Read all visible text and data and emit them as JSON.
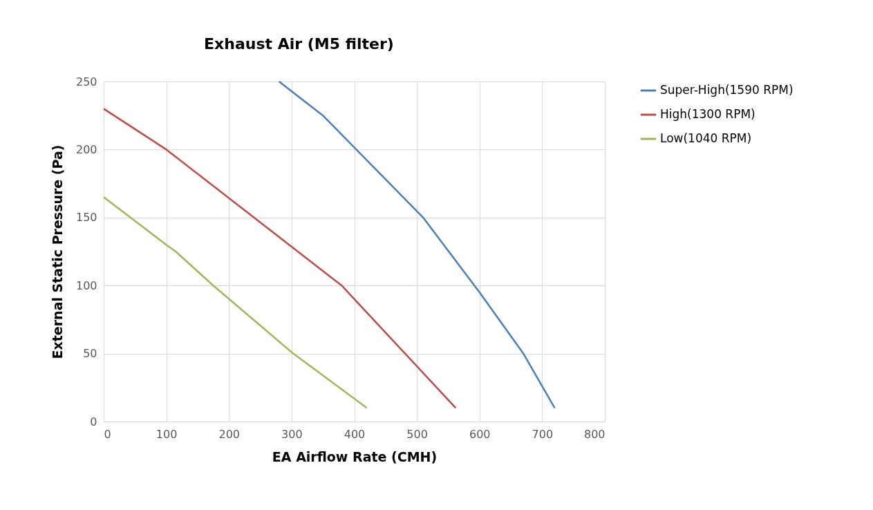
{
  "chart_data": {
    "type": "line",
    "title": "Exhaust Air (M5 filter)",
    "xlabel": "EA Airflow Rate (CMH)",
    "ylabel": "External Static Pressure (Pa)",
    "xlim": [
      0,
      800
    ],
    "ylim": [
      0,
      250
    ],
    "xticks": [
      0,
      100,
      200,
      300,
      400,
      500,
      600,
      700,
      800
    ],
    "yticks": [
      0,
      50,
      100,
      150,
      200,
      250
    ],
    "grid": true,
    "legend": "right",
    "marker": "none",
    "line_style": "solid",
    "series": [
      {
        "name": "Super-High(1590 RPM)",
        "color": "#4a7ebb",
        "x": [
          280,
          350,
          510,
          600,
          670,
          720
        ],
        "values": [
          250,
          225,
          150,
          95,
          50,
          10
        ]
      },
      {
        "name": "High(1300 RPM)",
        "color": "#be4b48",
        "x": [
          0,
          100,
          380,
          562
        ],
        "values": [
          230,
          200,
          100,
          10
        ]
      },
      {
        "name": "Low(1040 RPM)",
        "color": "#98b954",
        "x": [
          0,
          100,
          115,
          175,
          300,
          420
        ],
        "values": [
          165,
          130,
          125,
          100,
          51,
          10
        ]
      }
    ]
  }
}
